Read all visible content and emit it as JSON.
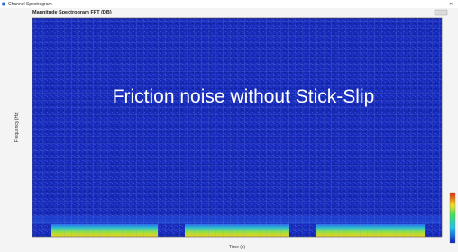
{
  "window": {
    "title": "Channel Spectrogram"
  },
  "chart": {
    "title": "Magnitude Spectrogram FFT (DB)",
    "x_label": "Time (s)",
    "y_label": "Frequency (Hz)"
  },
  "overlay": {
    "text": "Friction noise without Stick-Slip"
  }
}
